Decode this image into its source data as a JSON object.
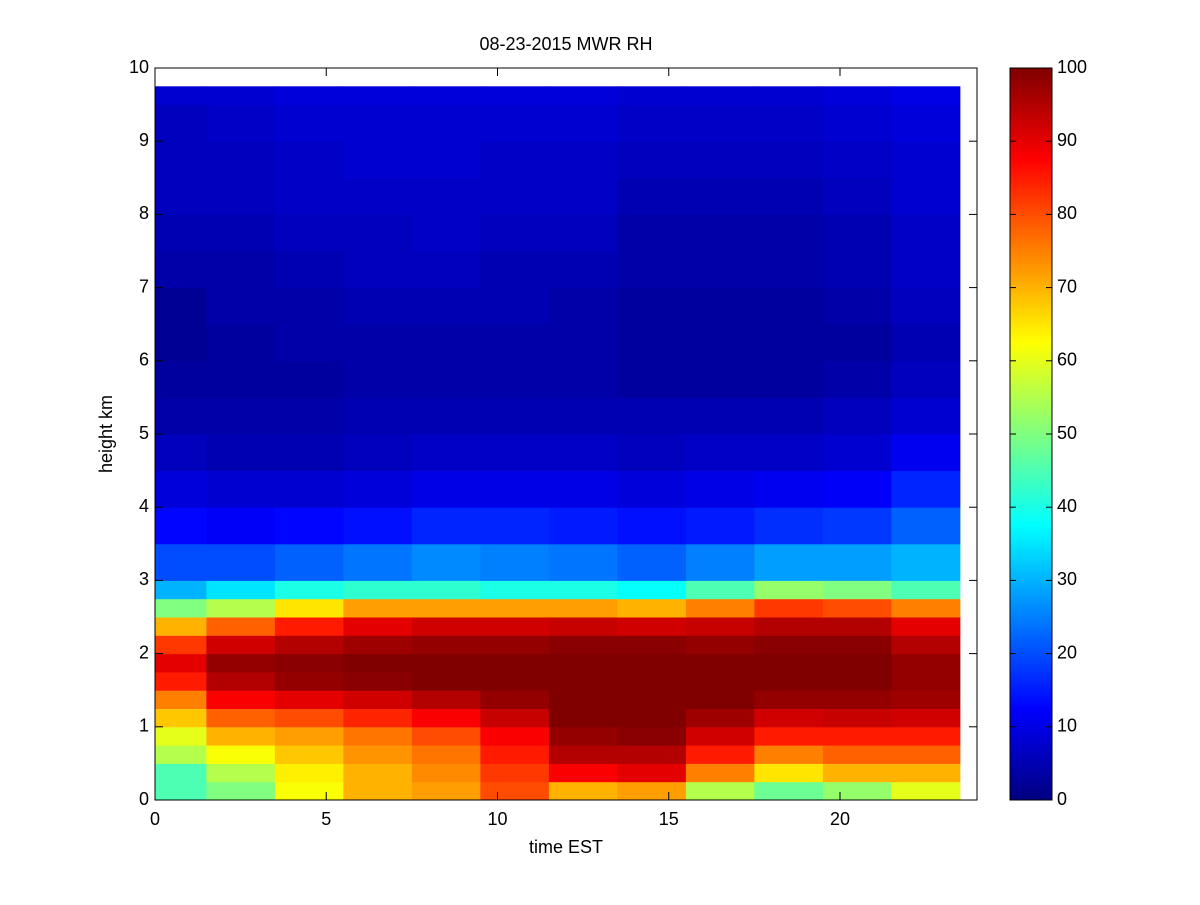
{
  "chart_data": {
    "type": "heatmap",
    "title": "08-23-2015 MWR RH",
    "x_label": "time EST",
    "y_label": "height km",
    "colormap": "jet",
    "x_edges": [
      0,
      1.5,
      3.5,
      5.5,
      7.5,
      9.5,
      11.5,
      13.5,
      15.5,
      17.5,
      19.5,
      21.5,
      23.5
    ],
    "y_edges": [
      0,
      0.25,
      0.5,
      0.75,
      1,
      1.25,
      1.5,
      1.75,
      2,
      2.25,
      2.5,
      2.75,
      3,
      3.5,
      4,
      4.5,
      5,
      5.5,
      6,
      6.5,
      7,
      7.5,
      8,
      8.5,
      9,
      9.5,
      9.75
    ],
    "z": [
      [
        45,
        50,
        62,
        70,
        72,
        80,
        70,
        72,
        55,
        48,
        52,
        60
      ],
      [
        45,
        55,
        64,
        70,
        74,
        82,
        88,
        90,
        75,
        65,
        70,
        70
      ],
      [
        55,
        62,
        68,
        73,
        76,
        85,
        95,
        95,
        85,
        75,
        78,
        78
      ],
      [
        60,
        70,
        72,
        76,
        80,
        88,
        98,
        99,
        92,
        85,
        85,
        85
      ],
      [
        68,
        78,
        80,
        84,
        88,
        93,
        100,
        100,
        97,
        92,
        93,
        92
      ],
      [
        75,
        88,
        90,
        92,
        95,
        98,
        100,
        100,
        100,
        98,
        98,
        97
      ],
      [
        85,
        95,
        98,
        99,
        100,
        100,
        100,
        100,
        100,
        100,
        100,
        98
      ],
      [
        90,
        98,
        99,
        100,
        100,
        100,
        100,
        100,
        100,
        100,
        100,
        98
      ],
      [
        82,
        92,
        95,
        97,
        98,
        98,
        99,
        99,
        98,
        99,
        99,
        95
      ],
      [
        70,
        78,
        85,
        90,
        92,
        92,
        93,
        92,
        93,
        95,
        95,
        90
      ],
      [
        50,
        55,
        65,
        72,
        72,
        72,
        72,
        70,
        75,
        82,
        80,
        75
      ],
      [
        30,
        35,
        40,
        42,
        42,
        40,
        40,
        38,
        45,
        52,
        50,
        45
      ],
      [
        20,
        20,
        22,
        24,
        26,
        25,
        24,
        22,
        25,
        28,
        28,
        30
      ],
      [
        13,
        12,
        13,
        14,
        16,
        16,
        15,
        14,
        15,
        17,
        18,
        22
      ],
      [
        9,
        8,
        8,
        9,
        10,
        10,
        10,
        9,
        10,
        11,
        12,
        16
      ],
      [
        6,
        5,
        5,
        6,
        7,
        7,
        7,
        6,
        7,
        7,
        8,
        11
      ],
      [
        4,
        4,
        4,
        5,
        5,
        5,
        5,
        5,
        5,
        5,
        6,
        8
      ],
      [
        3,
        3,
        3,
        4,
        4,
        4,
        4,
        3,
        3,
        3,
        4,
        6
      ],
      [
        2,
        3,
        4,
        4,
        4,
        4,
        4,
        3,
        3,
        3,
        3,
        5
      ],
      [
        2,
        4,
        4,
        5,
        5,
        5,
        4,
        3,
        3,
        3,
        4,
        6
      ],
      [
        4,
        4,
        5,
        6,
        6,
        5,
        5,
        4,
        4,
        4,
        5,
        7
      ],
      [
        5,
        5,
        6,
        6,
        7,
        6,
        6,
        4,
        4,
        4,
        5,
        7
      ],
      [
        6,
        6,
        7,
        7,
        7,
        7,
        7,
        5,
        5,
        5,
        6,
        8
      ],
      [
        6,
        6,
        7,
        8,
        8,
        7,
        7,
        6,
        6,
        6,
        7,
        8
      ],
      [
        6,
        7,
        8,
        8,
        8,
        8,
        8,
        7,
        7,
        7,
        8,
        9
      ],
      [
        8,
        8,
        9,
        9,
        9,
        9,
        9,
        8,
        8,
        8,
        9,
        10
      ]
    ],
    "xlim": [
      0,
      24
    ],
    "xticks": [
      0,
      5,
      10,
      15,
      20
    ],
    "ylim": [
      0,
      10
    ],
    "yticks": [
      0,
      1,
      2,
      3,
      4,
      5,
      6,
      7,
      8,
      9,
      10
    ],
    "clim": [
      0,
      100
    ],
    "cticks": [
      0,
      10,
      20,
      30,
      40,
      50,
      60,
      70,
      80,
      90,
      100
    ]
  }
}
